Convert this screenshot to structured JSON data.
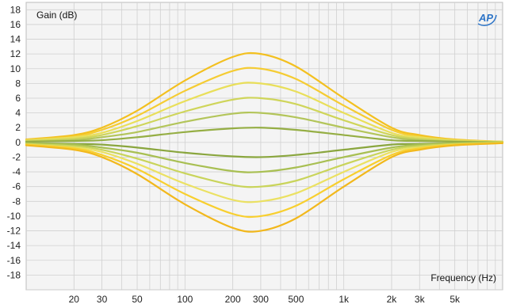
{
  "chart_data": {
    "type": "line",
    "title": "",
    "ylabel": "Gain (dB)",
    "xlabel": "Frequency (Hz)",
    "x_scale": "log",
    "xlim": [
      10,
      10000
    ],
    "ylim": [
      -20,
      19
    ],
    "yticks": [
      "18",
      "16",
      "14",
      "12",
      "10",
      "8",
      "6",
      "4",
      "2",
      "0",
      "-2",
      "-4",
      "-6",
      "-8",
      "-10",
      "-12",
      "-14",
      "-16",
      "-18"
    ],
    "xticks": [
      {
        "value": 20,
        "label": "20"
      },
      {
        "value": 30,
        "label": "30"
      },
      {
        "value": 50,
        "label": "50"
      },
      {
        "value": 100,
        "label": "100"
      },
      {
        "value": 200,
        "label": "200"
      },
      {
        "value": 300,
        "label": "300"
      },
      {
        "value": 500,
        "label": "500"
      },
      {
        "value": 1000,
        "label": "1k"
      },
      {
        "value": 2000,
        "label": "2k"
      },
      {
        "value": 3000,
        "label": "3k"
      },
      {
        "value": 5000,
        "label": "5k"
      }
    ],
    "grid": true,
    "center_frequency_hz": 300,
    "x": [
      10,
      20,
      30,
      50,
      100,
      200,
      300,
      500,
      1000,
      2000,
      3000,
      5000,
      10000
    ],
    "series": [
      {
        "color": "#f3c01f",
        "y": [
          0.4,
          1.0,
          2.0,
          4.3,
          8.4,
          11.6,
          12.0,
          10.3,
          6.0,
          2.0,
          1.0,
          0.4,
          0.1
        ]
      },
      {
        "color": "#f5cc33",
        "y": [
          0.3,
          0.8,
          1.7,
          3.6,
          7.0,
          9.7,
          10.0,
          8.6,
          5.0,
          1.7,
          0.8,
          0.3,
          0.1
        ]
      },
      {
        "color": "#e9df5a",
        "y": [
          0.3,
          0.7,
          1.3,
          2.9,
          5.6,
          7.8,
          8.0,
          6.9,
          4.0,
          1.3,
          0.7,
          0.3,
          0.1
        ]
      },
      {
        "color": "#cfd55a",
        "y": [
          0.2,
          0.5,
          1.0,
          2.2,
          4.2,
          5.8,
          6.0,
          5.2,
          3.0,
          1.0,
          0.5,
          0.2,
          0.0
        ]
      },
      {
        "color": "#b3c55a",
        "y": [
          0.1,
          0.3,
          0.7,
          1.4,
          2.8,
          3.9,
          4.0,
          3.4,
          2.0,
          0.7,
          0.3,
          0.1,
          0.0
        ]
      },
      {
        "color": "#95ae44",
        "y": [
          0.1,
          0.2,
          0.3,
          0.7,
          1.4,
          1.9,
          2.0,
          1.7,
          1.0,
          0.3,
          0.2,
          0.1,
          0.0
        ]
      },
      {
        "color": "#8aa63e",
        "y": [
          -0.1,
          -0.2,
          -0.3,
          -0.7,
          -1.4,
          -1.9,
          -2.0,
          -1.7,
          -1.0,
          -0.3,
          -0.2,
          -0.1,
          0.0
        ]
      },
      {
        "color": "#a8bf52",
        "y": [
          -0.1,
          -0.3,
          -0.7,
          -1.4,
          -2.8,
          -3.9,
          -4.0,
          -3.4,
          -2.0,
          -0.7,
          -0.3,
          -0.1,
          0.0
        ]
      },
      {
        "color": "#c9d45a",
        "y": [
          -0.2,
          -0.5,
          -1.0,
          -2.2,
          -4.2,
          -5.8,
          -6.0,
          -5.2,
          -3.0,
          -1.0,
          -0.5,
          -0.2,
          0.0
        ]
      },
      {
        "color": "#ebe162",
        "y": [
          -0.3,
          -0.7,
          -1.3,
          -2.9,
          -5.6,
          -7.8,
          -8.0,
          -6.9,
          -4.0,
          -1.3,
          -0.7,
          -0.3,
          -0.1
        ]
      },
      {
        "color": "#f8cf2e",
        "y": [
          -0.3,
          -0.8,
          -1.7,
          -3.6,
          -7.0,
          -9.7,
          -10.0,
          -8.6,
          -5.0,
          -1.7,
          -0.8,
          -0.3,
          -0.1
        ]
      },
      {
        "color": "#f2b81c",
        "y": [
          -0.4,
          -1.0,
          -2.0,
          -4.3,
          -8.4,
          -11.6,
          -12.0,
          -10.3,
          -6.0,
          -2.0,
          -1.0,
          -0.4,
          -0.1
        ]
      }
    ]
  },
  "logo": {
    "text": "AP",
    "color": "#2f76c8"
  },
  "colors": {
    "plot_bg": "#f4f4f4",
    "grid": "#d0d0d0",
    "axis_text": "#222222"
  }
}
